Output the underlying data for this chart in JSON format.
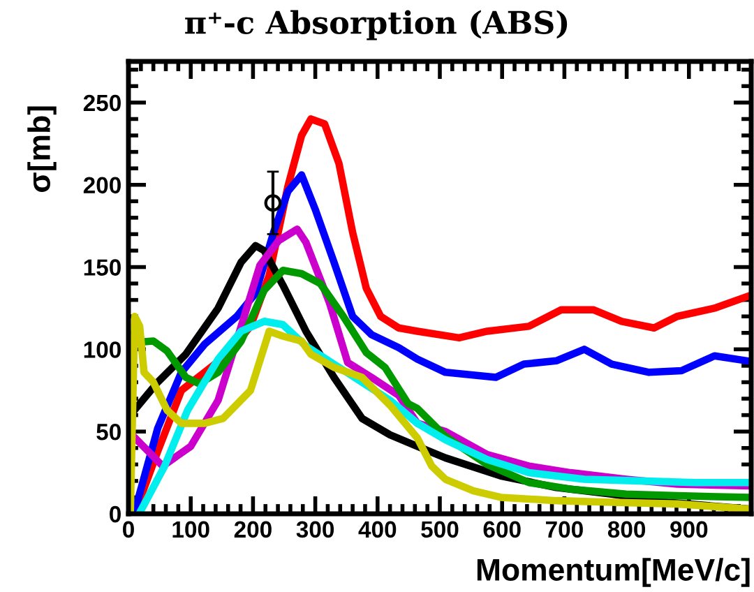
{
  "chart_data": {
    "type": "line",
    "title": "π⁺-c Absorption (ABS)",
    "xlabel": "Momentum[MeV/c]",
    "ylabel": "σ[mb]",
    "xlim": [
      0,
      1000
    ],
    "xticks": [
      0,
      100,
      200,
      300,
      400,
      500,
      600,
      700,
      800,
      900
    ],
    "ylim": [
      0,
      275
    ],
    "yticks": [
      0,
      50,
      100,
      150,
      200,
      250
    ],
    "grid": false,
    "legend": false,
    "series": [
      {
        "color": "#ff0000",
        "x": [
          10,
          47,
          85,
          122,
          159,
          196,
          226,
          256,
          278,
          293,
          315,
          338,
          360,
          382,
          405,
          434,
          464,
          531,
          576,
          643,
          695,
          747,
          792,
          844,
          881,
          941,
          993
        ],
        "values": [
          0,
          38,
          75,
          86,
          97,
          114,
          145,
          199,
          230,
          240,
          237,
          213,
          171,
          137,
          120,
          113,
          111,
          107,
          111,
          114,
          124,
          124,
          117,
          113,
          120,
          125,
          132
        ]
      },
      {
        "color": "#0000ff",
        "x": [
          9,
          47,
          85,
          122,
          174,
          204,
          233,
          256,
          278,
          300,
          330,
          360,
          390,
          434,
          464,
          509,
          590,
          635,
          687,
          732,
          776,
          836,
          888,
          941,
          993
        ],
        "values": [
          0,
          52,
          86,
          103,
          120,
          134,
          171,
          196,
          206,
          185,
          153,
          120,
          109,
          101,
          94,
          86,
          83,
          91,
          93,
          100,
          91,
          86,
          87,
          96,
          93
        ]
      },
      {
        "color": "#000000",
        "x": [
          3,
          47,
          92,
          144,
          181,
          204,
          218,
          248,
          285,
          330,
          375,
          420,
          464,
          509,
          598,
          687,
          776,
          866,
          993
        ],
        "values": [
          60,
          80,
          97,
          125,
          153,
          163,
          160,
          139,
          111,
          83,
          58,
          48,
          41,
          34,
          23,
          16,
          12,
          7,
          3
        ]
      },
      {
        "color": "#cc00cc",
        "x": [
          3,
          55,
          100,
          144,
          181,
          211,
          241,
          271,
          285,
          323,
          352,
          390,
          434,
          464,
          509,
          576,
          643,
          710,
          799,
          881,
          993
        ],
        "values": [
          49,
          29,
          41,
          69,
          114,
          151,
          166,
          173,
          165,
          128,
          92,
          83,
          72,
          55,
          50,
          36,
          29,
          25,
          21,
          18,
          17
        ]
      },
      {
        "color": "#009900",
        "x": [
          3,
          40,
          62,
          92,
          114,
          144,
          181,
          218,
          248,
          278,
          308,
          345,
          382,
          412,
          449,
          464,
          509,
          576,
          643,
          710,
          799,
          881,
          993
        ],
        "values": [
          104,
          105,
          99,
          83,
          79,
          86,
          105,
          136,
          148,
          146,
          140,
          120,
          98,
          89,
          67,
          64,
          47,
          30,
          19,
          15,
          12,
          11,
          10
        ]
      },
      {
        "color": "#00eeee",
        "x": [
          20,
          58,
          95,
          144,
          181,
          218,
          248,
          285,
          330,
          375,
          420,
          464,
          509,
          576,
          643,
          732,
          821,
          910,
          993
        ],
        "values": [
          2,
          29,
          63,
          94,
          111,
          117,
          115,
          102,
          91,
          80,
          69,
          55,
          45,
          33,
          25,
          21,
          20,
          19,
          19
        ]
      },
      {
        "color": "#cccc00",
        "x": [
          3,
          10,
          18,
          25,
          40,
          62,
          85,
          122,
          152,
          196,
          226,
          248,
          278,
          293,
          330,
          375,
          420,
          464,
          487,
          509,
          554,
          598,
          687,
          776,
          881,
          993
        ],
        "values": [
          0,
          120,
          114,
          86,
          80,
          63,
          55,
          55,
          58,
          75,
          111,
          108,
          105,
          97,
          89,
          83,
          66,
          46,
          29,
          21,
          14,
          10,
          8,
          7,
          6,
          3
        ]
      },
      {
        "type": "scatter",
        "color": "#000000",
        "marker": "circle",
        "x": [
          232
        ],
        "values": [
          189
        ],
        "errors": [
          19
        ]
      }
    ]
  }
}
